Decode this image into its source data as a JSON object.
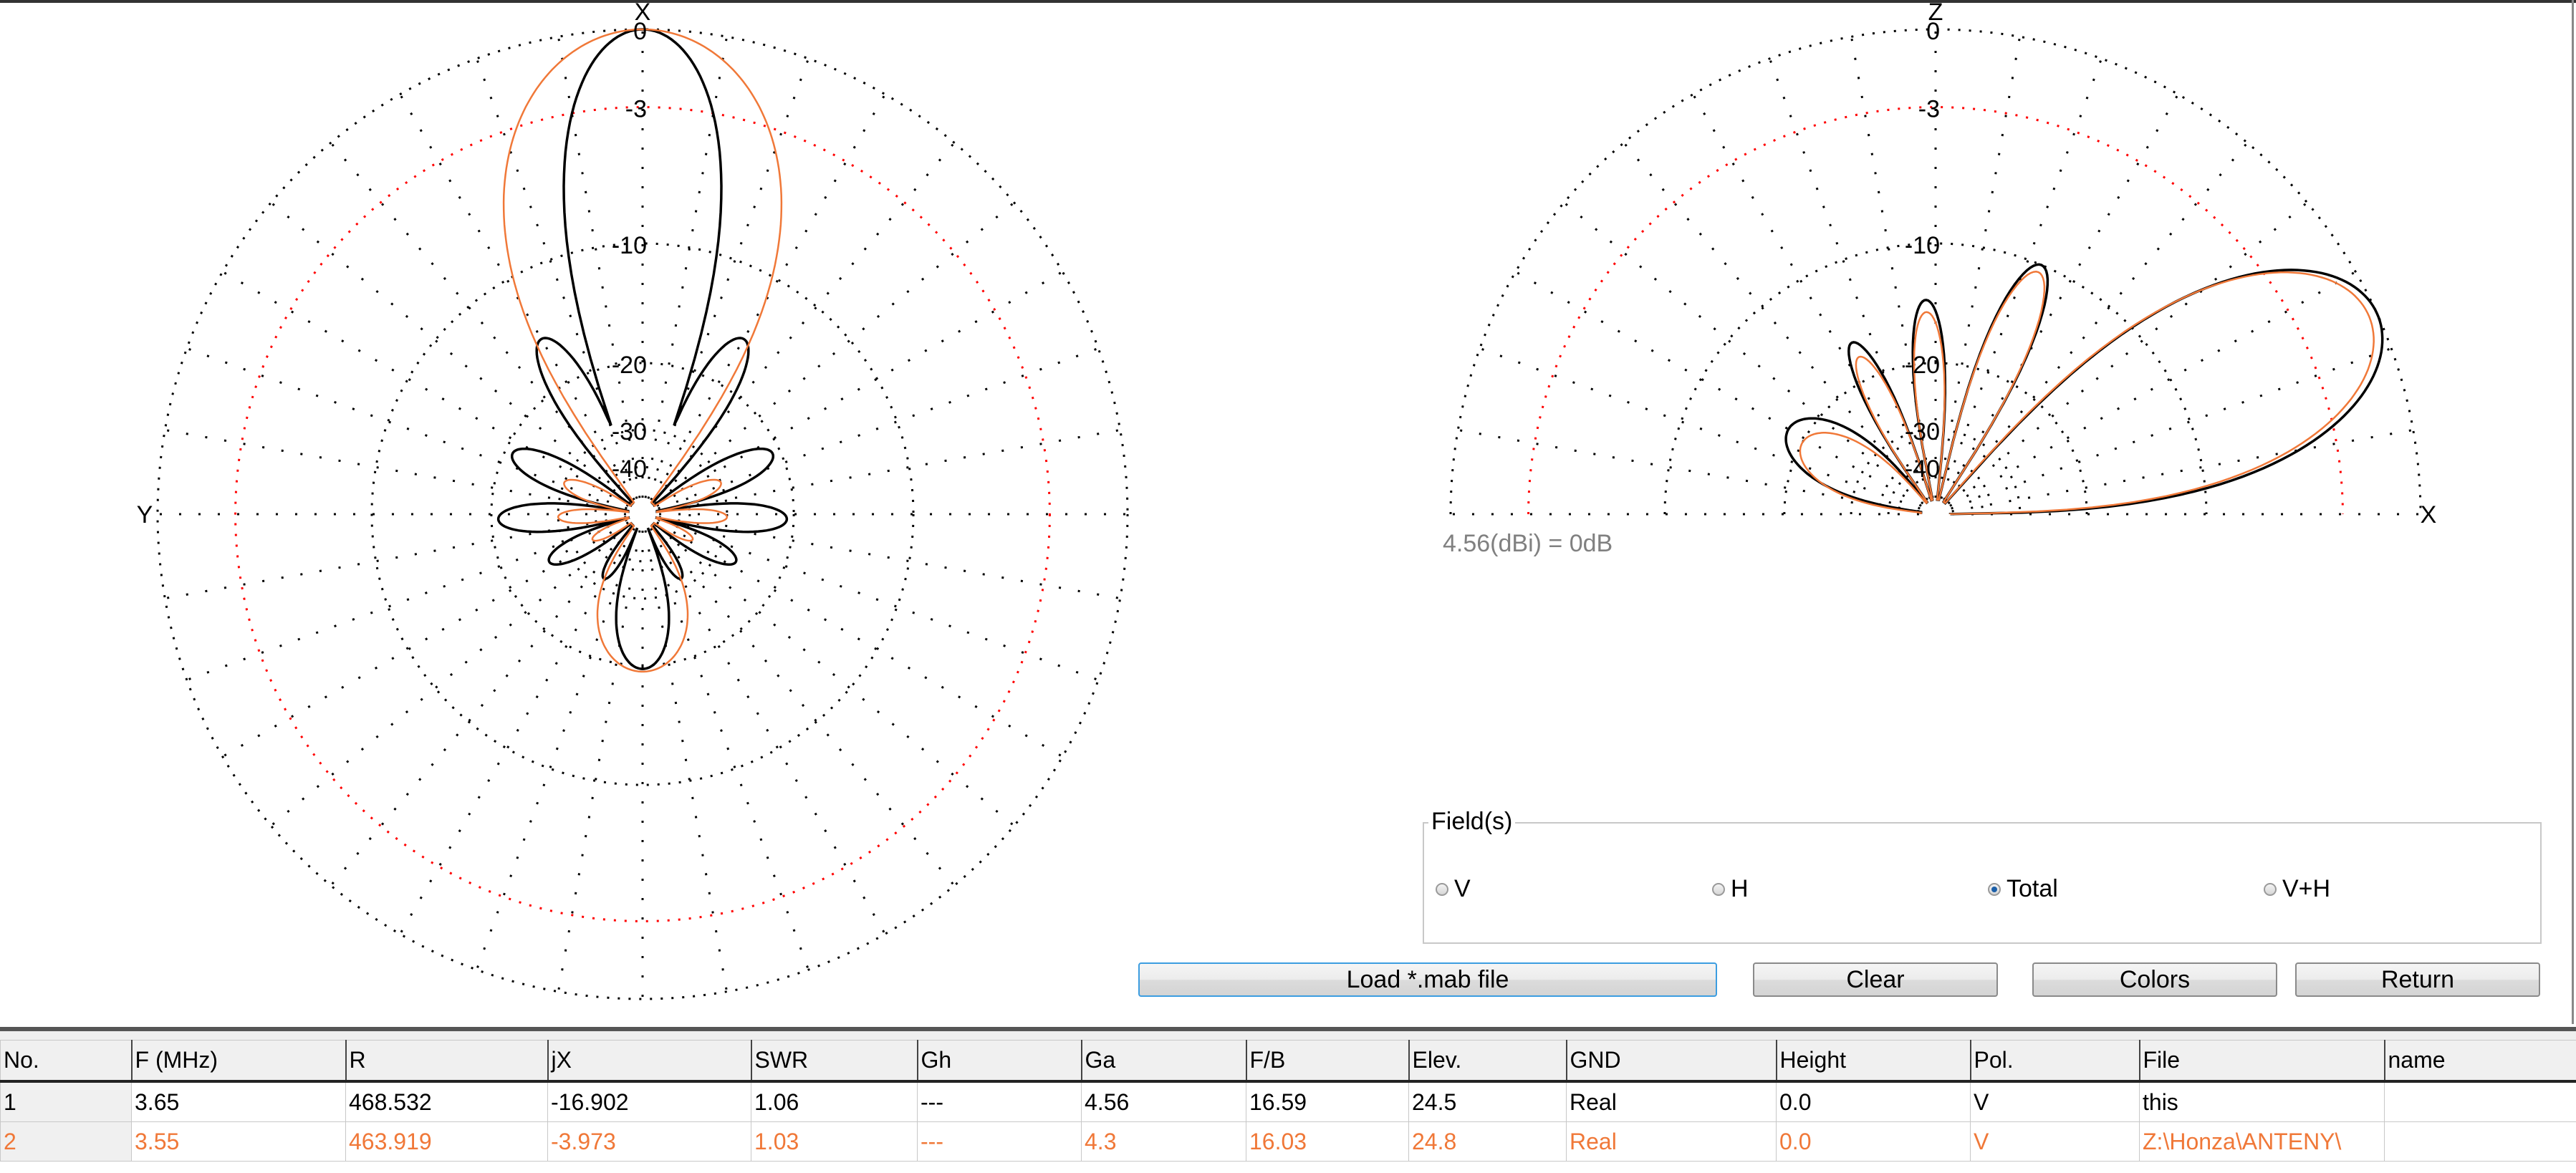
{
  "left_plot": {
    "axis_top": "X",
    "axis_left": "Y",
    "ring_labels": [
      "0",
      "-3",
      "-10",
      "-20",
      "-30",
      "-40"
    ]
  },
  "right_plot": {
    "axis_top": "Z",
    "axis_right": "X",
    "ring_labels": [
      "0",
      "-3",
      "-10",
      "-20",
      "-30",
      "-40"
    ],
    "reference": "4.56(dBi) = 0dB"
  },
  "chart_data": [
    {
      "type": "polar",
      "plane": "horizontal",
      "scale": "ARRL log",
      "rings_db": [
        0,
        -3,
        -10,
        -20,
        -30,
        -40
      ],
      "grid_spoke_step_deg": 10,
      "ring_colors": {
        "default": "#000000",
        "-3": "#ff0000"
      },
      "traces": [
        {
          "color": "#000000",
          "lobes": [
            {
              "angle_deg": 0,
              "gain_db": 0,
              "halfwidth_deg": 20
            },
            {
              "angle_deg": 30,
              "gain_db": -15,
              "halfwidth_deg": 12
            },
            {
              "angle_deg": -30,
              "gain_db": -15,
              "halfwidth_deg": 12
            },
            {
              "angle_deg": 65,
              "gain_db": -20.9,
              "halfwidth_deg": 13
            },
            {
              "angle_deg": -65,
              "gain_db": -20.9,
              "halfwidth_deg": 13
            },
            {
              "angle_deg": 92,
              "gain_db": -20.8,
              "halfwidth_deg": 12
            },
            {
              "angle_deg": -92,
              "gain_db": -20.8,
              "halfwidth_deg": 12
            },
            {
              "angle_deg": 117,
              "gain_db": -26.3,
              "halfwidth_deg": 12
            },
            {
              "angle_deg": -117,
              "gain_db": -26.3,
              "halfwidth_deg": 12
            },
            {
              "angle_deg": 149,
              "gain_db": -32,
              "halfwidth_deg": 10
            },
            {
              "angle_deg": -149,
              "gain_db": -32,
              "halfwidth_deg": 10
            },
            {
              "angle_deg": 180,
              "gain_db": -19.6,
              "halfwidth_deg": 21
            }
          ]
        },
        {
          "color": "#f07838",
          "lobes": [
            {
              "angle_deg": 0,
              "gain_db": 0,
              "halfwidth_deg": 36
            },
            {
              "angle_deg": 68,
              "gain_db": -30,
              "halfwidth_deg": 12
            },
            {
              "angle_deg": -68,
              "gain_db": -30,
              "halfwidth_deg": 12
            },
            {
              "angle_deg": 92,
              "gain_db": -30,
              "halfwidth_deg": 10
            },
            {
              "angle_deg": -92,
              "gain_db": -30,
              "halfwidth_deg": 10
            },
            {
              "angle_deg": 117,
              "gain_db": -37,
              "halfwidth_deg": 10
            },
            {
              "angle_deg": -117,
              "gain_db": -37,
              "halfwidth_deg": 10
            },
            {
              "angle_deg": 180,
              "gain_db": -19.3,
              "halfwidth_deg": 36
            }
          ]
        }
      ]
    },
    {
      "type": "polar",
      "plane": "elevation",
      "scale": "ARRL log",
      "rings_db": [
        0,
        -3,
        -10,
        -20,
        -30,
        -40
      ],
      "grid_spoke_step_deg": 10,
      "ring_colors": {
        "default": "#000000",
        "-3": "#ff0000"
      },
      "traces": [
        {
          "color": "#000000",
          "lobes": [
            {
              "angle_deg": 24.5,
              "gain_db": 0,
              "halfwidth_deg": 24
            },
            {
              "angle_deg": 67,
              "gain_db": -10,
              "halfwidth_deg": 10
            },
            {
              "angle_deg": 92.6,
              "gain_db": -14,
              "halfwidth_deg": 9
            },
            {
              "angle_deg": 116,
              "gain_db": -16,
              "halfwidth_deg": 9
            },
            {
              "angle_deg": 150,
              "gain_db": -18,
              "halfwidth_deg": 22
            }
          ]
        },
        {
          "color": "#f07838",
          "lobes": [
            {
              "angle_deg": 24.8,
              "gain_db": -0.3,
              "halfwidth_deg": 24
            },
            {
              "angle_deg": 67,
              "gain_db": -10.5,
              "halfwidth_deg": 10
            },
            {
              "angle_deg": 92.6,
              "gain_db": -15,
              "halfwidth_deg": 9
            },
            {
              "angle_deg": 116,
              "gain_db": -17.5,
              "halfwidth_deg": 9
            },
            {
              "angle_deg": 152,
              "gain_db": -20,
              "halfwidth_deg": 22
            }
          ]
        }
      ]
    }
  ],
  "fields": {
    "title": "Field(s)",
    "options": [
      {
        "label": "V",
        "selected": false
      },
      {
        "label": "H",
        "selected": false
      },
      {
        "label": "Total",
        "selected": true
      },
      {
        "label": "V+H",
        "selected": false
      }
    ]
  },
  "buttons": {
    "load": "Load *.mab file",
    "clear": "Clear",
    "colors": "Colors",
    "return": "Return"
  },
  "table": {
    "headers": [
      "No.",
      "F (MHz)",
      "R",
      "jX",
      "SWR",
      "Gh",
      "Ga",
      "F/B",
      "Elev.",
      "GND",
      "Height",
      "Pol.",
      "File",
      "name"
    ],
    "rows": [
      {
        "color": "#000000",
        "cells": [
          "1",
          "3.65",
          "468.532",
          "-16.902",
          "1.06",
          "---",
          "4.56",
          "16.59",
          "24.5",
          "Real",
          "0.0",
          "V",
          "this",
          ""
        ]
      },
      {
        "color": "#f07838",
        "cells": [
          "2",
          "3.55",
          "463.919",
          "-3.973",
          "1.03",
          "---",
          "4.3",
          "16.03",
          "24.8",
          "Real",
          "0.0",
          "V",
          "Z:\\Honza\\ANTENY\\",
          ""
        ]
      }
    ]
  }
}
